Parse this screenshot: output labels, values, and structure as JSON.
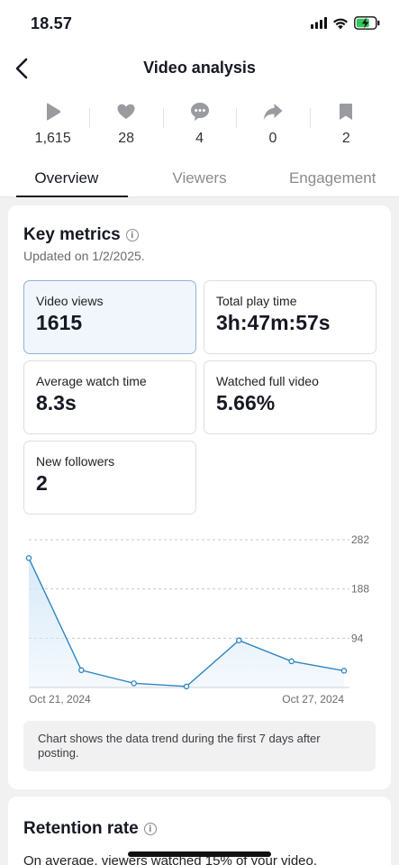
{
  "status_bar": {
    "time": "18.57"
  },
  "header": {
    "title": "Video analysis"
  },
  "stats": [
    {
      "icon": "play-icon",
      "value": "1,615"
    },
    {
      "icon": "heart-icon",
      "value": "28"
    },
    {
      "icon": "comment-icon",
      "value": "4"
    },
    {
      "icon": "share-icon",
      "value": "0"
    },
    {
      "icon": "bookmark-icon",
      "value": "2"
    }
  ],
  "tabs": [
    {
      "label": "Overview",
      "active": true
    },
    {
      "label": "Viewers",
      "active": false
    },
    {
      "label": "Engagement",
      "active": false
    }
  ],
  "key_metrics": {
    "title": "Key metrics",
    "updated": "Updated on 1/2/2025.",
    "items": [
      {
        "label": "Video views",
        "value": "1615",
        "selected": true
      },
      {
        "label": "Total play time",
        "value": "3h:47m:57s",
        "selected": false
      },
      {
        "label": "Average watch time",
        "value": "8.3s",
        "selected": false
      },
      {
        "label": "Watched full video",
        "value": "5.66%",
        "selected": false
      },
      {
        "label": "New followers",
        "value": "2",
        "selected": false
      }
    ]
  },
  "chart_data": {
    "type": "area",
    "x": [
      "Oct 21, 2024",
      "Oct 22, 2024",
      "Oct 23, 2024",
      "Oct 24, 2024",
      "Oct 25, 2024",
      "Oct 26, 2024",
      "Oct 27, 2024"
    ],
    "x_tick_labels": [
      "Oct 21, 2024",
      "Oct 27, 2024"
    ],
    "values": [
      247,
      33,
      8,
      2,
      90,
      50,
      32
    ],
    "y_ticks": [
      94,
      188,
      282
    ],
    "ylim": [
      0,
      282
    ],
    "grid": true,
    "colors": {
      "line": "#2e86c1",
      "fill": "#d6e8f8"
    }
  },
  "chart_note": "Chart shows the data trend during the first 7 days after posting.",
  "retention": {
    "title": "Retention rate",
    "description": "On average, viewers watched 15% of your video."
  }
}
